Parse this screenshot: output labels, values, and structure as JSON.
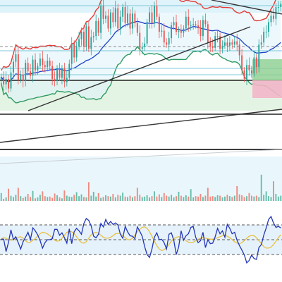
{
  "colors": {
    "candle_up": "#26a69a",
    "candle_down": "#ef5350",
    "bb_upper": "#e53935",
    "bb_middle": "#1e40c8",
    "bb_lower": "#2e9a60",
    "fill_blue": "#dff3fb",
    "fill_green": "#e4f4e4",
    "fill_pink": "#f2b6c8",
    "vol_up": "#67bda8",
    "vol_down": "#ef8a80",
    "osc_fast": "#2336b6",
    "osc_slow": "#e8c040",
    "osc_band": "#e6f2fb",
    "trendline": "#333333"
  },
  "chart_data": [
    {
      "type": "candlestick",
      "panel": "price",
      "title": "",
      "xlabel": "",
      "ylabel": "",
      "ylim": [
        0,
        100
      ],
      "grid": false,
      "overlays": [
        "bollinger-upper",
        "bollinger-middle",
        "bollinger-lower",
        "trendlines",
        "horizontal-levels",
        "position-box"
      ],
      "close": [
        31,
        24,
        29,
        20,
        35,
        45,
        52,
        28,
        33,
        27,
        44,
        36,
        32,
        47,
        37,
        41,
        48,
        42,
        40,
        46,
        41,
        29,
        27,
        38,
        30,
        39,
        26,
        30,
        43,
        62,
        49,
        59,
        66,
        73,
        59,
        78,
        57,
        68,
        69,
        83,
        72,
        97,
        85,
        88,
        76,
        91,
        82,
        95,
        76,
        87,
        96,
        81,
        90,
        76,
        90,
        81,
        72,
        57,
        59,
        62,
        82,
        91,
        81,
        97,
        87,
        73,
        74,
        63,
        61,
        67,
        79,
        82,
        73,
        74,
        72,
        76,
        87,
        79,
        79,
        80,
        79,
        77,
        69,
        84,
        80,
        63,
        59,
        58,
        69,
        69,
        57,
        60,
        63,
        60,
        63,
        61,
        64,
        61,
        51,
        37,
        29,
        42,
        37,
        34,
        49,
        40,
        61,
        63,
        73,
        73,
        82,
        88,
        85,
        96,
        96,
        99
      ]
    },
    {
      "type": "bar",
      "panel": "volume",
      "title": "",
      "ylim": [
        0,
        100
      ],
      "values": [
        18,
        5,
        8,
        28,
        12,
        9,
        14,
        30,
        11,
        7,
        10,
        16,
        9,
        23,
        6,
        8,
        14,
        22,
        11,
        9,
        10,
        7,
        17,
        13,
        8,
        6,
        24,
        12,
        10,
        9,
        14,
        20,
        11,
        15,
        9,
        8,
        43,
        12,
        21,
        10,
        18,
        7,
        9,
        13,
        11,
        10,
        16,
        8,
        14,
        12,
        19,
        10,
        9,
        12,
        8,
        11,
        30,
        14,
        9,
        10,
        13,
        8,
        11,
        22,
        10,
        15,
        9,
        18,
        12,
        10,
        14,
        8,
        11,
        21,
        12,
        9,
        13,
        10,
        27,
        8,
        11,
        10,
        16,
        9,
        12,
        30,
        10,
        11,
        9,
        13,
        12,
        8,
        10,
        14,
        11,
        9,
        12,
        34,
        15,
        13,
        9,
        11,
        18,
        12,
        10,
        12,
        9,
        60,
        14,
        22,
        11,
        9,
        45,
        16,
        10,
        12
      ]
    },
    {
      "type": "line",
      "panel": "oscillator",
      "title": "",
      "ylim": [
        0,
        100
      ],
      "levels": [
        80,
        50,
        20
      ],
      "series": [
        {
          "values": [
            51,
            51,
            26,
            45,
            70,
            50,
            56,
            44,
            31,
            46,
            55,
            65,
            50,
            74,
            68,
            60,
            48,
            33,
            44,
            50,
            50,
            52,
            71,
            71,
            59,
            64,
            54,
            43,
            72,
            42,
            66,
            73,
            68,
            61,
            83,
            93,
            89,
            78,
            57,
            54,
            61,
            83,
            76,
            91,
            81,
            87,
            81,
            84,
            80,
            61,
            53,
            77,
            66,
            58,
            57,
            52,
            76,
            67,
            57,
            36,
            20,
            14,
            31,
            55,
            64,
            50,
            51,
            44,
            31,
            61,
            64,
            48,
            20,
            35,
            68,
            49,
            58,
            62,
            75,
            77,
            55,
            44,
            48,
            65,
            34,
            50,
            42,
            43,
            56,
            73,
            62,
            68,
            55,
            81,
            73,
            62,
            65,
            49,
            38,
            29,
            19,
            3,
            8,
            19,
            12,
            10,
            34,
            40,
            59,
            74,
            91,
            97,
            84,
            75,
            77,
            74
          ]
        },
        {
          "values": [
            52,
            54,
            53,
            50,
            49,
            50,
            53,
            55,
            56,
            53,
            48,
            44,
            45,
            49,
            52,
            57,
            62,
            65,
            64,
            62,
            58,
            54,
            49,
            47,
            48,
            53,
            59,
            65,
            67,
            66,
            62,
            56,
            49,
            44,
            43,
            46,
            53,
            60,
            64,
            65,
            63,
            59,
            55,
            53,
            53,
            55,
            58,
            62,
            63,
            62,
            58,
            54,
            50,
            50,
            53,
            59,
            66,
            71,
            75,
            76,
            73,
            66,
            57,
            47,
            38,
            31,
            28,
            30,
            34,
            40,
            47,
            52,
            55,
            56,
            55,
            52,
            48,
            45,
            44,
            45,
            48,
            51,
            53,
            54,
            53,
            52,
            51,
            51,
            52,
            54,
            56,
            58,
            59,
            57,
            54,
            50,
            46,
            43,
            42,
            44,
            48,
            53,
            57,
            59,
            58,
            54,
            48,
            42,
            36,
            33,
            33,
            35,
            40,
            47,
            54,
            60
          ]
        }
      ]
    }
  ]
}
